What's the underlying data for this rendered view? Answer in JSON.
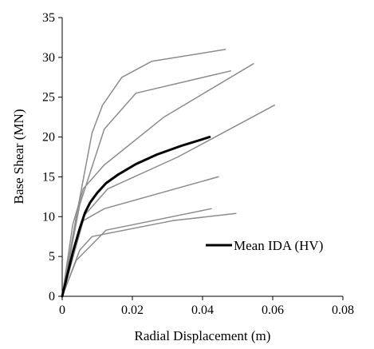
{
  "chart_data": {
    "type": "line",
    "xlabel": "Radial Displacement (m)",
    "ylabel": "Base Shear (MN)",
    "xlim": [
      0,
      0.08
    ],
    "ylim": [
      0,
      35
    ],
    "xticks": [
      "0",
      "0.02",
      "0.04",
      "0.06",
      "0.08"
    ],
    "xtick_values": [
      0,
      0.02,
      0.04,
      0.06,
      0.08
    ],
    "yticks": [
      "0",
      "5",
      "10",
      "15",
      "20",
      "25",
      "30",
      "35"
    ],
    "ytick_values": [
      0,
      5,
      10,
      15,
      20,
      25,
      30,
      35
    ],
    "grid": false,
    "legend_position": "bottom-right",
    "colors": {
      "individual": "#8c8c8c",
      "mean": "#000000"
    },
    "series": [
      {
        "points": [
          [
            0,
            0
          ],
          [
            0.004,
            10
          ],
          [
            0.0085,
            20.5
          ],
          [
            0.0115,
            24
          ],
          [
            0.017,
            27.5
          ],
          [
            0.0255,
            29.5
          ],
          [
            0.0465,
            31
          ]
        ]
      },
      {
        "points": [
          [
            0,
            0
          ],
          [
            0.005,
            11.5
          ],
          [
            0.012,
            21
          ],
          [
            0.021,
            25.5
          ],
          [
            0.048,
            28.3
          ]
        ]
      },
      {
        "points": [
          [
            0,
            0
          ],
          [
            0.003,
            9
          ],
          [
            0.006,
            13.5
          ],
          [
            0.012,
            16.5
          ],
          [
            0.029,
            22.5
          ],
          [
            0.0545,
            29.2
          ]
        ]
      },
      {
        "points": [
          [
            0,
            0
          ],
          [
            0.006,
            10
          ],
          [
            0.013,
            13.5
          ],
          [
            0.033,
            17.5
          ],
          [
            0.0605,
            24
          ]
        ]
      },
      {
        "points": [
          [
            0,
            0
          ],
          [
            0.006,
            9.5
          ],
          [
            0.012,
            11
          ],
          [
            0.0445,
            15
          ]
        ]
      },
      {
        "points": [
          [
            0,
            0
          ],
          [
            0.005,
            5.8
          ],
          [
            0.0085,
            7.5
          ],
          [
            0.0315,
            9.5
          ],
          [
            0.0495,
            10.4
          ]
        ]
      },
      {
        "points": [
          [
            0,
            0
          ],
          [
            0.004,
            4.5
          ],
          [
            0.0125,
            8.3
          ],
          [
            0.0425,
            11
          ]
        ]
      },
      {
        "name": "Mean IDA (HV)",
        "highlight": true,
        "points": [
          [
            0,
            0
          ],
          [
            0.003,
            5.5
          ],
          [
            0.005,
            8.5
          ],
          [
            0.0065,
            10.5
          ],
          [
            0.008,
            11.8
          ],
          [
            0.01,
            13
          ],
          [
            0.0125,
            14.2
          ],
          [
            0.016,
            15.3
          ],
          [
            0.021,
            16.6
          ],
          [
            0.027,
            17.8
          ],
          [
            0.034,
            18.9
          ],
          [
            0.042,
            20
          ]
        ]
      }
    ]
  }
}
